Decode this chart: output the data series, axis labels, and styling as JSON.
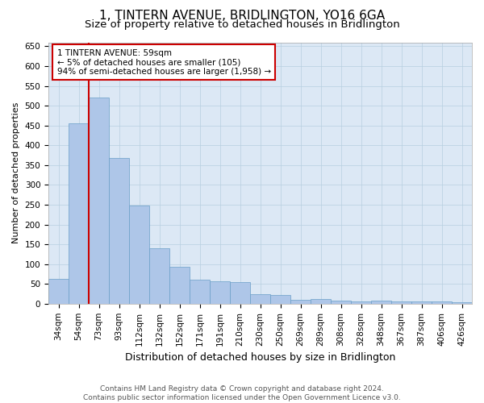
{
  "title": "1, TINTERN AVENUE, BRIDLINGTON, YO16 6GA",
  "subtitle": "Size of property relative to detached houses in Bridlington",
  "xlabel": "Distribution of detached houses by size in Bridlington",
  "ylabel": "Number of detached properties",
  "categories": [
    "34sqm",
    "54sqm",
    "73sqm",
    "93sqm",
    "112sqm",
    "132sqm",
    "152sqm",
    "171sqm",
    "191sqm",
    "210sqm",
    "230sqm",
    "250sqm",
    "269sqm",
    "289sqm",
    "308sqm",
    "328sqm",
    "348sqm",
    "367sqm",
    "387sqm",
    "406sqm",
    "426sqm"
  ],
  "values": [
    62,
    455,
    520,
    368,
    247,
    140,
    93,
    60,
    57,
    55,
    24,
    23,
    10,
    12,
    7,
    6,
    7,
    5,
    5,
    5,
    4
  ],
  "bar_color": "#aec6e8",
  "bar_edge_color": "#6a9fc8",
  "vline_color": "#cc0000",
  "vline_x_index": 1,
  "annotation_box_text": "1 TINTERN AVENUE: 59sqm\n← 5% of detached houses are smaller (105)\n94% of semi-detached houses are larger (1,958) →",
  "annotation_box_color": "#cc0000",
  "annotation_box_bg": "#ffffff",
  "grid_color": "#b8cfe0",
  "bg_color": "#ffffff",
  "plot_bg_color": "#dce8f5",
  "ylim": [
    0,
    660
  ],
  "yticks": [
    0,
    50,
    100,
    150,
    200,
    250,
    300,
    350,
    400,
    450,
    500,
    550,
    600,
    650
  ],
  "footnote": "Contains HM Land Registry data © Crown copyright and database right 2024.\nContains public sector information licensed under the Open Government Licence v3.0.",
  "title_fontsize": 11,
  "subtitle_fontsize": 9.5,
  "xlabel_fontsize": 9,
  "ylabel_fontsize": 8,
  "tick_fontsize": 7.5,
  "annot_fontsize": 7.5,
  "footnote_fontsize": 6.5
}
